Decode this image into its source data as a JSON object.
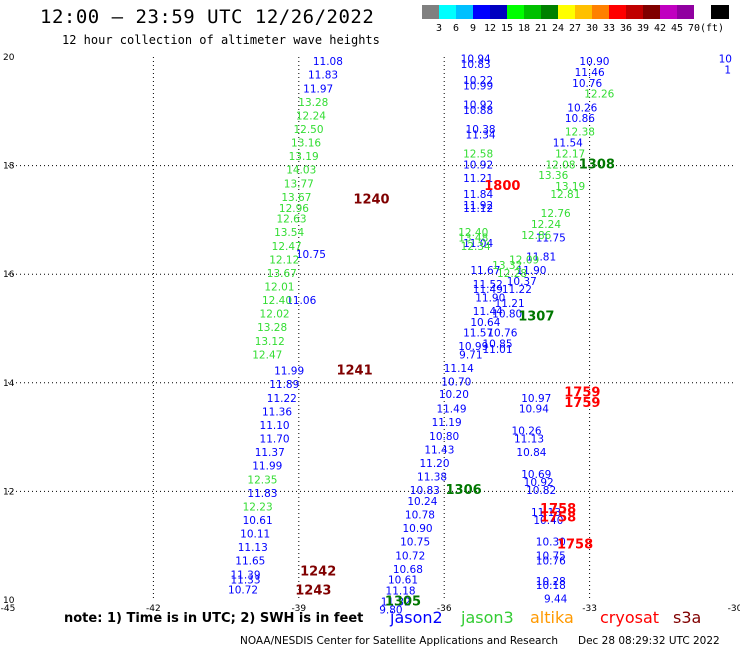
{
  "header": {
    "title": "12:00 – 23:59 UTC 12/26/2022",
    "subtitle": "12 hour collection of altimeter wave heights"
  },
  "colorbar": {
    "unit": "(ft)",
    "colors": [
      "#808080",
      "#00ffff",
      "#00c0ff",
      "#0000ff",
      "#0000c0",
      "#00ff00",
      "#00c000",
      "#008000",
      "#ffff00",
      "#ffc000",
      "#ff8000",
      "#ff0000",
      "#c00000",
      "#800000",
      "#c000c0",
      "#9000a0",
      "#ffffff",
      "#000000"
    ],
    "labels": [
      "3",
      "6",
      "9",
      "12",
      "15",
      "18",
      "21",
      "24",
      "27",
      "30",
      "33",
      "36",
      "39",
      "42",
      "45",
      "70"
    ]
  },
  "axes": {
    "x_ticks": [
      "-45",
      "-42",
      "-39",
      "-36",
      "-33",
      "-30"
    ],
    "y_ticks": [
      "20",
      "18",
      "16",
      "14",
      "12",
      "10"
    ]
  },
  "map_data": {
    "lon_range": [
      -45,
      -30
    ],
    "lat_range": [
      10,
      20
    ],
    "passes": [
      {
        "sat": "jason2",
        "color": "#0000ff",
        "labels": [
          {
            "lon": -38.4,
            "lat": 19.85,
            "v": "11.08"
          },
          {
            "lon": -38.5,
            "lat": 19.6,
            "v": "11.83"
          },
          {
            "lon": -38.6,
            "lat": 19.35,
            "v": "11.97"
          },
          {
            "lon": -38.75,
            "lat": 16.3,
            "v": "10.75"
          },
          {
            "lon": -38.95,
            "lat": 15.45,
            "v": "11.06"
          },
          {
            "lon": -39.2,
            "lat": 14.15,
            "v": "11.99"
          },
          {
            "lon": -39.3,
            "lat": 13.9,
            "v": "11.89"
          },
          {
            "lon": -39.35,
            "lat": 13.65,
            "v": "11.22"
          },
          {
            "lon": -39.45,
            "lat": 13.4,
            "v": "11.36"
          },
          {
            "lon": -39.5,
            "lat": 13.15,
            "v": "11.10"
          },
          {
            "lon": -39.5,
            "lat": 12.9,
            "v": "11.70"
          },
          {
            "lon": -39.6,
            "lat": 12.65,
            "v": "11.37"
          },
          {
            "lon": -39.65,
            "lat": 12.4,
            "v": "11.99"
          },
          {
            "lon": -39.75,
            "lat": 11.9,
            "v": "11.83"
          },
          {
            "lon": -39.85,
            "lat": 11.4,
            "v": "10.61"
          },
          {
            "lon": -39.9,
            "lat": 11.15,
            "v": "10.11"
          },
          {
            "lon": -39.95,
            "lat": 10.9,
            "v": "11.13"
          },
          {
            "lon": -40.0,
            "lat": 10.65,
            "v": "11.65"
          },
          {
            "lon": -40.1,
            "lat": 10.4,
            "v": "11.39"
          },
          {
            "lon": -40.1,
            "lat": 10.3,
            "v": "11.33"
          },
          {
            "lon": -40.15,
            "lat": 10.12,
            "v": "10.72"
          },
          {
            "lon": -35.35,
            "lat": 19.9,
            "v": "10.94"
          },
          {
            "lon": -35.35,
            "lat": 19.8,
            "v": "10.83"
          },
          {
            "lon": -35.3,
            "lat": 19.5,
            "v": "10.22"
          },
          {
            "lon": -35.3,
            "lat": 19.4,
            "v": "10.99"
          },
          {
            "lon": -35.3,
            "lat": 19.05,
            "v": "10.92"
          },
          {
            "lon": -35.3,
            "lat": 18.95,
            "v": "10.88"
          },
          {
            "lon": -35.25,
            "lat": 18.6,
            "v": "10.38"
          },
          {
            "lon": -35.25,
            "lat": 18.5,
            "v": "11.34"
          },
          {
            "lon": -35.3,
            "lat": 17.95,
            "v": "10.92"
          },
          {
            "lon": -35.3,
            "lat": 17.7,
            "v": "11.21"
          },
          {
            "lon": -35.3,
            "lat": 17.4,
            "v": "11.84"
          },
          {
            "lon": -35.3,
            "lat": 17.2,
            "v": "11.92"
          },
          {
            "lon": -35.3,
            "lat": 17.15,
            "v": "11.12"
          },
          {
            "lon": -35.3,
            "lat": 16.5,
            "v": "11.04"
          },
          {
            "lon": -35.15,
            "lat": 16.0,
            "v": "11.67"
          },
          {
            "lon": -35.1,
            "lat": 15.75,
            "v": "11.52"
          },
          {
            "lon": -35.1,
            "lat": 15.65,
            "v": "11.49"
          },
          {
            "lon": -35.05,
            "lat": 15.5,
            "v": "11.90"
          },
          {
            "lon": -35.1,
            "lat": 15.25,
            "v": "11.44"
          },
          {
            "lon": -35.15,
            "lat": 15.05,
            "v": "10.64"
          },
          {
            "lon": -35.3,
            "lat": 14.85,
            "v": "11.57"
          },
          {
            "lon": -35.4,
            "lat": 14.6,
            "v": "10.99"
          },
          {
            "lon": -35.45,
            "lat": 14.45,
            "v": "9.71"
          },
          {
            "lon": -35.7,
            "lat": 14.2,
            "v": "11.14"
          },
          {
            "lon": -35.75,
            "lat": 13.95,
            "v": "10.70"
          },
          {
            "lon": -35.8,
            "lat": 13.72,
            "v": "10.20"
          },
          {
            "lon": -35.85,
            "lat": 13.45,
            "v": "11.49"
          },
          {
            "lon": -35.95,
            "lat": 13.2,
            "v": "11.19"
          },
          {
            "lon": -36.0,
            "lat": 12.95,
            "v": "10.80"
          },
          {
            "lon": -36.1,
            "lat": 12.7,
            "v": "11.43"
          },
          {
            "lon": -36.2,
            "lat": 12.45,
            "v": "11.20"
          },
          {
            "lon": -36.25,
            "lat": 12.2,
            "v": "11.38"
          },
          {
            "lon": -36.4,
            "lat": 11.95,
            "v": "10.83"
          },
          {
            "lon": -36.45,
            "lat": 11.75,
            "v": "10.24"
          },
          {
            "lon": -36.5,
            "lat": 11.5,
            "v": "10.78"
          },
          {
            "lon": -36.55,
            "lat": 11.25,
            "v": "10.90"
          },
          {
            "lon": -36.6,
            "lat": 11.0,
            "v": "10.75"
          },
          {
            "lon": -36.7,
            "lat": 10.75,
            "v": "10.72"
          },
          {
            "lon": -36.75,
            "lat": 10.5,
            "v": "10.68"
          },
          {
            "lon": -36.85,
            "lat": 10.3,
            "v": "10.61"
          },
          {
            "lon": -36.9,
            "lat": 10.1,
            "v": "11.18"
          },
          {
            "lon": -37.0,
            "lat": 9.9,
            "v": "11.32"
          },
          {
            "lon": -37.1,
            "lat": 9.75,
            "v": "9.80"
          },
          {
            "lon": -32.9,
            "lat": 19.85,
            "v": "10.90"
          },
          {
            "lon": -33.0,
            "lat": 19.65,
            "v": "11.46"
          },
          {
            "lon": -33.05,
            "lat": 19.45,
            "v": "10.76"
          },
          {
            "lon": -33.15,
            "lat": 19.0,
            "v": "10.26"
          },
          {
            "lon": -33.2,
            "lat": 18.8,
            "v": "10.86"
          },
          {
            "lon": -33.45,
            "lat": 18.35,
            "v": "11.54"
          },
          {
            "lon": -33.8,
            "lat": 16.6,
            "v": "11.75"
          },
          {
            "lon": -34.0,
            "lat": 16.25,
            "v": "11.81"
          },
          {
            "lon": -34.2,
            "lat": 16.0,
            "v": "11.90"
          },
          {
            "lon": -34.4,
            "lat": 15.8,
            "v": "10.37"
          },
          {
            "lon": -34.5,
            "lat": 15.65,
            "v": "11.22"
          },
          {
            "lon": -34.65,
            "lat": 15.4,
            "v": "11.21"
          },
          {
            "lon": -34.7,
            "lat": 15.2,
            "v": "10.80"
          },
          {
            "lon": -34.8,
            "lat": 14.85,
            "v": "10.76"
          },
          {
            "lon": -34.9,
            "lat": 14.65,
            "v": "10.85"
          },
          {
            "lon": -34.9,
            "lat": 14.55,
            "v": "11.01"
          },
          {
            "lon": -34.1,
            "lat": 13.65,
            "v": "10.97"
          },
          {
            "lon": -34.15,
            "lat": 13.45,
            "v": "10.94"
          },
          {
            "lon": -34.3,
            "lat": 13.05,
            "v": "10.26"
          },
          {
            "lon": -34.25,
            "lat": 12.9,
            "v": "11.13"
          },
          {
            "lon": -34.2,
            "lat": 12.65,
            "v": "10.84"
          },
          {
            "lon": -34.1,
            "lat": 12.25,
            "v": "10.69"
          },
          {
            "lon": -34.05,
            "lat": 12.1,
            "v": "10.92"
          },
          {
            "lon": -34.0,
            "lat": 11.95,
            "v": "10.82"
          },
          {
            "lon": -33.9,
            "lat": 11.55,
            "v": "11.13"
          },
          {
            "lon": -33.85,
            "lat": 11.4,
            "v": "10.40"
          },
          {
            "lon": -33.8,
            "lat": 11.0,
            "v": "10.30"
          },
          {
            "lon": -33.8,
            "lat": 10.75,
            "v": "10.75"
          },
          {
            "lon": -33.8,
            "lat": 10.65,
            "v": "10.76"
          },
          {
            "lon": -33.8,
            "lat": 10.28,
            "v": "10.28"
          },
          {
            "lon": -33.8,
            "lat": 10.2,
            "v": "10.18"
          },
          {
            "lon": -33.7,
            "lat": 9.95,
            "v": "9.44"
          },
          {
            "lon": -30.2,
            "lat": 19.9,
            "v": "10"
          },
          {
            "lon": -30.15,
            "lat": 19.7,
            "v": "1"
          }
        ]
      },
      {
        "sat": "jason3",
        "color": "#33dd33",
        "labels": [
          {
            "lon": -38.7,
            "lat": 19.1,
            "v": "13.28"
          },
          {
            "lon": -38.75,
            "lat": 18.85,
            "v": "12.24"
          },
          {
            "lon": -38.8,
            "lat": 18.6,
            "v": "12.50"
          },
          {
            "lon": -38.85,
            "lat": 18.35,
            "v": "13.16"
          },
          {
            "lon": -38.9,
            "lat": 18.1,
            "v": "13.19"
          },
          {
            "lon": -38.95,
            "lat": 17.85,
            "v": "14.03"
          },
          {
            "lon": -39.0,
            "lat": 17.6,
            "v": "13.77"
          },
          {
            "lon": -39.05,
            "lat": 17.35,
            "v": "13.67"
          },
          {
            "lon": -39.1,
            "lat": 17.15,
            "v": "12.96"
          },
          {
            "lon": -39.15,
            "lat": 16.95,
            "v": "12.63"
          },
          {
            "lon": -39.2,
            "lat": 16.7,
            "v": "13.54"
          },
          {
            "lon": -39.25,
            "lat": 16.45,
            "v": "12.47"
          },
          {
            "lon": -39.3,
            "lat": 16.2,
            "v": "12.12"
          },
          {
            "lon": -39.35,
            "lat": 15.95,
            "v": "13.67"
          },
          {
            "lon": -39.4,
            "lat": 15.7,
            "v": "12.01"
          },
          {
            "lon": -39.45,
            "lat": 15.45,
            "v": "12.40"
          },
          {
            "lon": -39.5,
            "lat": 15.2,
            "v": "12.02"
          },
          {
            "lon": -39.55,
            "lat": 14.95,
            "v": "13.28"
          },
          {
            "lon": -39.6,
            "lat": 14.7,
            "v": "13.12"
          },
          {
            "lon": -39.65,
            "lat": 14.45,
            "v": "12.47"
          },
          {
            "lon": -39.75,
            "lat": 12.15,
            "v": "12.35"
          },
          {
            "lon": -39.85,
            "lat": 11.65,
            "v": "12.23"
          },
          {
            "lon": -35.3,
            "lat": 18.15,
            "v": "12.58"
          },
          {
            "lon": -35.4,
            "lat": 16.7,
            "v": "12.40"
          },
          {
            "lon": -35.4,
            "lat": 16.6,
            "v": "13.48"
          },
          {
            "lon": -35.35,
            "lat": 16.45,
            "v": "12.34"
          },
          {
            "lon": -32.8,
            "lat": 19.25,
            "v": "12.26"
          },
          {
            "lon": -33.2,
            "lat": 18.55,
            "v": "12.38"
          },
          {
            "lon": -33.4,
            "lat": 18.15,
            "v": "12.17"
          },
          {
            "lon": -33.6,
            "lat": 17.95,
            "v": "12.08"
          },
          {
            "lon": -33.75,
            "lat": 17.75,
            "v": "13.36"
          },
          {
            "lon": -33.4,
            "lat": 17.55,
            "v": "13.19"
          },
          {
            "lon": -33.5,
            "lat": 17.4,
            "v": "12.81"
          },
          {
            "lon": -33.7,
            "lat": 17.05,
            "v": "12.76"
          },
          {
            "lon": -33.9,
            "lat": 16.85,
            "v": "12.24"
          },
          {
            "lon": -34.1,
            "lat": 16.65,
            "v": "12.86"
          },
          {
            "lon": -34.35,
            "lat": 16.2,
            "v": "12.09"
          },
          {
            "lon": -34.7,
            "lat": 16.1,
            "v": "13.32"
          },
          {
            "lon": -34.6,
            "lat": 15.95,
            "v": "12.28"
          }
        ]
      }
    ],
    "time_labels": [
      {
        "lon": -37.5,
        "lat": 17.3,
        "v": "1240",
        "color": "#800000"
      },
      {
        "lon": -37.85,
        "lat": 14.15,
        "v": "1241",
        "color": "#800000"
      },
      {
        "lon": -38.6,
        "lat": 10.45,
        "v": "1242",
        "color": "#800000"
      },
      {
        "lon": -38.7,
        "lat": 10.1,
        "v": "1243",
        "color": "#800000"
      },
      {
        "lon": -34.8,
        "lat": 17.55,
        "v": "1800",
        "color": "#ff0000"
      },
      {
        "lon": -33.15,
        "lat": 13.75,
        "v": "1759",
        "color": "#ff0000"
      },
      {
        "lon": -33.15,
        "lat": 13.55,
        "v": "1759",
        "color": "#ff0000"
      },
      {
        "lon": -33.65,
        "lat": 11.6,
        "v": "1758",
        "color": "#ff0000"
      },
      {
        "lon": -33.65,
        "lat": 11.45,
        "v": "1758",
        "color": "#ff0000"
      },
      {
        "lon": -33.3,
        "lat": 10.95,
        "v": "1758",
        "color": "#ff0000"
      },
      {
        "lon": -32.85,
        "lat": 17.95,
        "v": "1308",
        "color": "#007700"
      },
      {
        "lon": -34.1,
        "lat": 15.15,
        "v": "1307",
        "color": "#007700"
      },
      {
        "lon": -35.6,
        "lat": 11.95,
        "v": "1306",
        "color": "#007700"
      },
      {
        "lon": -36.85,
        "lat": 9.9,
        "v": "1305",
        "color": "#007700"
      }
    ]
  },
  "legend": {
    "note": "note: 1) Time is in UTC; 2) SWH is in feet",
    "satellites": [
      {
        "name": "jason2",
        "color": "#0000ff"
      },
      {
        "name": "jason3",
        "color": "#33cc33"
      },
      {
        "name": "altika",
        "color": "#ff9900"
      },
      {
        "name": "cryosat",
        "color": "#ff0000"
      },
      {
        "name": "s3a",
        "color": "#800000"
      }
    ]
  },
  "footer": {
    "credit": "NOAA/NESDIS Center for Satellite Applications and Research",
    "stamp": "Dec 28 08:29:32 UTC 2022"
  }
}
